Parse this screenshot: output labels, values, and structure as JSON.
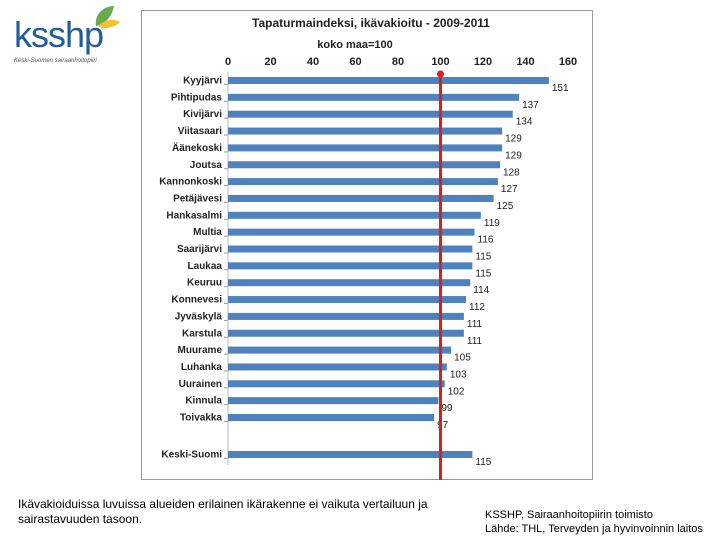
{
  "brand": {
    "logo_text": "ksshp",
    "logo_subtitle": "Keski-Suomen sairaanhoitopiiri",
    "leaf_colors": [
      "#6aa84f",
      "#f1c232"
    ]
  },
  "chart_data": {
    "type": "bar",
    "orientation": "horizontal",
    "title": "Tapaturmaindeksi, ikävakioitu - 2009-2011",
    "subtitle": "koko maa=100",
    "xlim": [
      0,
      160
    ],
    "xticks": [
      "0",
      "20",
      "40",
      "60",
      "80",
      "100",
      "120",
      "140",
      "160"
    ],
    "tick_values": [
      0,
      20,
      40,
      60,
      80,
      100,
      120,
      140,
      160
    ],
    "reference_value": 100,
    "reference_color": "#d92020",
    "bar_color": "#4f81bd",
    "categories": [
      "Kyyjärvi",
      "Pihtipudas",
      "Kivijärvi",
      "Viitasaari",
      "Äänekoski",
      "Joutsa",
      "Kannonkoski",
      "Petäjävesi",
      "Hankasalmi",
      "Multia",
      "Saarijärvi",
      "Laukaa",
      "Keuruu",
      "Konnevesi",
      "Jyväskylä",
      "Karstula",
      "Muurame",
      "Luhanka",
      "Uurainen",
      "Kinnula",
      "Toivakka"
    ],
    "values": [
      151,
      137,
      134,
      129,
      129,
      128,
      127,
      125,
      119,
      116,
      115,
      115,
      114,
      112,
      111,
      111,
      105,
      103,
      102,
      99,
      97
    ],
    "value_labels": [
      "151",
      "137",
      "134",
      "129",
      "129",
      "128",
      "127",
      "125",
      "119",
      "116",
      "115",
      "115",
      "114",
      "112",
      "111",
      "111",
      "105",
      "103",
      "102",
      "99",
      "97"
    ],
    "total": {
      "category": "Keski-Suomi",
      "value": 115,
      "label": "115"
    }
  },
  "captions": {
    "left_line1": "Ikävakioiduissa luvuissa alueiden erilainen ikärakenne ei vaikuta vertailuun ja",
    "left_line2": "sairastavuuden tasoon.",
    "right_line1": "KSSHP, Sairaanhoitopiirin toimisto",
    "right_line2": "Lähde: THL, Terveyden ja hyvinvoinnin laitos"
  }
}
